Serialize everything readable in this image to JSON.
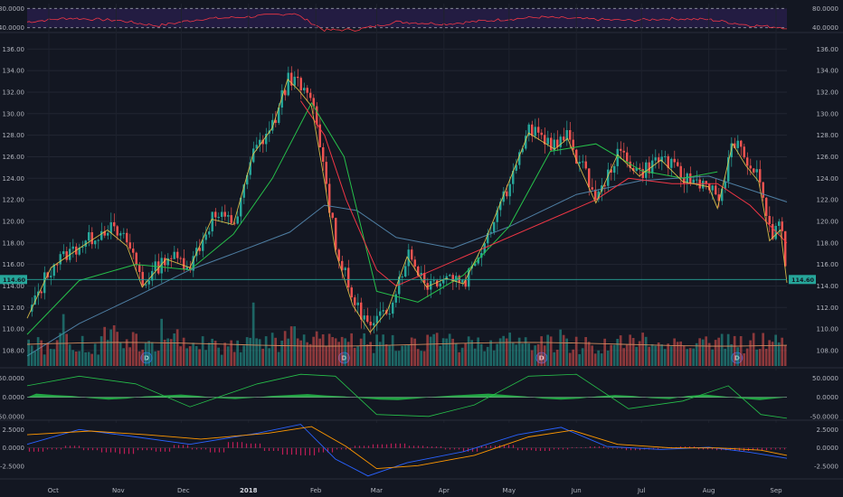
{
  "chart_data": [
    {
      "type": "line",
      "panel": "rsi",
      "y_ticks": [
        "80.0000",
        "40.0000"
      ],
      "ylim": [
        30,
        90
      ],
      "band": [
        40,
        80
      ],
      "series": [
        {
          "color": "#f23645",
          "x": [
            "2017-09-21",
            "2017-10-10",
            "2017-11-02",
            "2017-11-20",
            "2017-12-10",
            "2018-01-02",
            "2018-01-22",
            "2018-02-05",
            "2018-02-20",
            "2018-03-10",
            "2018-04-02",
            "2018-04-25",
            "2018-05-15",
            "2018-06-05",
            "2018-06-25",
            "2018-07-15",
            "2018-08-01",
            "2018-08-20",
            "2018-09-06"
          ],
          "y": [
            52,
            60,
            55,
            44,
            58,
            63,
            70,
            35,
            36,
            52,
            48,
            56,
            62,
            58,
            55,
            59,
            57,
            45,
            40
          ]
        }
      ]
    },
    {
      "type": "candlestick",
      "panel": "price",
      "y_ticks": [
        "136.00",
        "134.00",
        "132.00",
        "130.00",
        "128.00",
        "126.00",
        "124.00",
        "122.00",
        "120.00",
        "118.00",
        "116.00",
        "114.00",
        "112.00",
        "110.00",
        "108.00"
      ],
      "ylim": [
        106.4,
        137.2
      ],
      "x_ticks": [
        "Oct",
        "Nov",
        "Dec",
        "2018",
        "Feb",
        "Mar",
        "Apr",
        "May",
        "Jun",
        "Jul",
        "Aug",
        "Sep"
      ],
      "last_price_label": "114.60",
      "last_price": 114.6,
      "dividend_marker": "D",
      "dividend_dates": [
        "2017-11-15",
        "2018-02-14",
        "2018-05-16",
        "2018-08-14"
      ],
      "price_path": {
        "x": [
          "2017-09-21",
          "2017-10-02",
          "2017-10-15",
          "2017-10-28",
          "2017-11-06",
          "2017-11-13",
          "2017-11-24",
          "2017-12-05",
          "2017-12-15",
          "2017-12-25",
          "2018-01-03",
          "2018-01-12",
          "2018-01-19",
          "2018-01-24",
          "2018-01-30",
          "2018-02-02",
          "2018-02-05",
          "2018-02-10",
          "2018-02-18",
          "2018-02-26",
          "2018-03-06",
          "2018-03-15",
          "2018-03-24",
          "2018-04-02",
          "2018-04-10",
          "2018-04-20",
          "2018-05-01",
          "2018-05-10",
          "2018-05-22",
          "2018-05-28",
          "2018-06-01",
          "2018-06-10",
          "2018-06-20",
          "2018-06-30",
          "2018-07-10",
          "2018-07-20",
          "2018-08-01",
          "2018-08-05",
          "2018-08-12",
          "2018-08-18",
          "2018-08-24",
          "2018-08-29",
          "2018-09-03",
          "2018-09-06"
        ],
        "y": [
          111.3,
          116.0,
          117.8,
          119.5,
          118.0,
          114.2,
          116.8,
          116.0,
          120.5,
          120.0,
          126.5,
          129.0,
          133.5,
          132.5,
          131.0,
          127.5,
          124.0,
          117.5,
          112.5,
          110.0,
          112.0,
          117.0,
          114.2,
          115.0,
          114.5,
          118.5,
          124.0,
          128.5,
          127.0,
          128.0,
          126.0,
          122.0,
          126.5,
          124.5,
          126.0,
          124.0,
          123.5,
          121.5,
          127.5,
          125.5,
          124.0,
          118.5,
          119.5,
          114.6
        ]
      },
      "ma20": {
        "color": "#26c04a",
        "x": [
          "2017-09-21",
          "2017-10-15",
          "2017-11-10",
          "2017-12-05",
          "2017-12-25",
          "2018-01-12",
          "2018-01-30",
          "2018-02-14",
          "2018-03-01",
          "2018-03-20",
          "2018-04-10",
          "2018-05-01",
          "2018-05-20",
          "2018-06-10",
          "2018-07-01",
          "2018-07-20",
          "2018-08-05"
        ],
        "y": [
          109.5,
          114.5,
          116.0,
          115.5,
          118.8,
          124.0,
          131.0,
          126.0,
          113.5,
          112.5,
          115.0,
          119.5,
          126.5,
          127.2,
          124.7,
          124.0,
          124.6
        ]
      },
      "ma50": {
        "color": "#f23645",
        "x": [
          "2018-01-25",
          "2018-02-05",
          "2018-02-15",
          "2018-03-01",
          "2018-03-10",
          "2018-06-10",
          "2018-06-25",
          "2018-07-15",
          "2018-08-05",
          "2018-08-20",
          "2018-09-06"
        ],
        "y": [
          131.2,
          128.0,
          122.0,
          115.5,
          114.0,
          122.0,
          124.0,
          123.5,
          123.5,
          121.5,
          118.0
        ]
      },
      "ma100": {
        "color": "#4e7ea3",
        "x": [
          "2017-09-21",
          "2017-10-15",
          "2017-11-10",
          "2017-12-05",
          "2017-12-25",
          "2018-01-20",
          "2018-02-05",
          "2018-02-20",
          "2018-03-10",
          "2018-04-05",
          "2018-05-01",
          "2018-06-01",
          "2018-07-01",
          "2018-08-01",
          "2018-09-06"
        ],
        "y": [
          107.5,
          110.5,
          113.0,
          115.5,
          117.0,
          119.0,
          121.5,
          121.0,
          118.5,
          117.5,
          119.5,
          122.5,
          123.8,
          124.2,
          121.8
        ]
      }
    },
    {
      "type": "bar",
      "panel": "volume",
      "relative_volume": [
        0.45,
        0.62,
        0.5,
        0.38,
        1.0,
        0.55,
        0.4,
        0.48,
        0.72,
        0.6,
        0.42,
        0.5,
        0.68,
        0.55,
        0.9,
        0.65,
        0.58,
        0.7,
        0.62,
        0.5,
        0.45,
        0.6,
        0.55,
        0.52,
        0.48,
        0.6,
        0.62,
        0.55,
        0.58,
        0.5,
        0.48,
        0.45,
        0.5,
        0.6,
        0.55,
        0.52,
        0.62,
        0.58,
        0.55,
        0.5,
        0.6,
        0.7
      ]
    },
    {
      "type": "line",
      "panel": "oscillator",
      "y_ticks": [
        "50.0000",
        "0.0000",
        "-50.0000"
      ],
      "ylim": [
        -60,
        70
      ],
      "series": [
        {
          "color": "#26c04a",
          "x": [
            "2017-09-21",
            "2017-10-15",
            "2017-11-10",
            "2017-12-05",
            "2018-01-05",
            "2018-01-25",
            "2018-02-10",
            "2018-03-01",
            "2018-03-25",
            "2018-04-15",
            "2018-05-10",
            "2018-06-01",
            "2018-06-25",
            "2018-07-20",
            "2018-08-10",
            "2018-08-25",
            "2018-09-06"
          ],
          "y": [
            30,
            55,
            35,
            -25,
            35,
            60,
            55,
            -45,
            -50,
            -20,
            55,
            60,
            -30,
            -10,
            30,
            -45,
            -55
          ]
        }
      ],
      "histogram_color": "#26c04a",
      "histogram": [
        0.8,
        0.5,
        0.3,
        -0.2,
        -0.5,
        -0.3,
        0.2,
        0.4,
        0.6,
        0.3,
        -0.2,
        -0.4,
        -0.1,
        0.3,
        0.5,
        0.7,
        0.4,
        0.2,
        -0.2,
        -0.5,
        -0.6,
        -0.3,
        0.1,
        0.4,
        0.6,
        0.8,
        0.5,
        0.2,
        -0.3,
        -0.5,
        -0.3,
        0.2,
        0.5,
        0.3,
        -0.2,
        -0.4,
        0.3,
        0.6,
        0.2,
        -0.3,
        -0.6,
        -0.2
      ]
    },
    {
      "type": "line",
      "panel": "macd",
      "y_ticks": [
        "2.5000",
        "0.0000",
        "-2.5000"
      ],
      "ylim": [
        -4.2,
        3.4
      ],
      "series": [
        {
          "color": "#2962ff",
          "x": [
            "2017-09-21",
            "2017-10-15",
            "2017-11-10",
            "2017-12-05",
            "2018-01-05",
            "2018-01-25",
            "2018-02-10",
            "2018-02-25",
            "2018-03-15",
            "2018-04-10",
            "2018-05-05",
            "2018-05-25",
            "2018-06-15",
            "2018-07-10",
            "2018-08-01",
            "2018-08-20",
            "2018-09-06"
          ],
          "y": [
            0.5,
            2.5,
            1.5,
            0.5,
            2.0,
            3.2,
            -1.5,
            -3.8,
            -2.0,
            -0.5,
            1.8,
            2.8,
            0.2,
            -0.2,
            0.1,
            -0.6,
            -1.4
          ]
        },
        {
          "color": "#ff9800",
          "x": [
            "2017-09-21",
            "2017-10-20",
            "2017-11-15",
            "2017-12-10",
            "2018-01-10",
            "2018-01-30",
            "2018-02-15",
            "2018-03-01",
            "2018-03-20",
            "2018-04-15",
            "2018-05-10",
            "2018-05-30",
            "2018-06-20",
            "2018-07-15",
            "2018-08-05",
            "2018-08-25",
            "2018-09-06"
          ],
          "y": [
            1.8,
            2.3,
            1.8,
            1.2,
            2.0,
            2.9,
            0.2,
            -2.8,
            -2.4,
            -1.0,
            1.5,
            2.4,
            0.5,
            0.0,
            0.0,
            -0.3,
            -1.0
          ]
        }
      ],
      "histogram_color": "#e91e63",
      "histogram": [
        -0.5,
        -0.2,
        0.3,
        -0.3,
        -0.6,
        -0.8,
        -0.3,
        -0.5,
        0.4,
        -0.2,
        -0.6,
        0.8,
        0.6,
        -0.4,
        -0.9,
        -1.0,
        -0.6,
        -0.2,
        0.3,
        0.5,
        0.6,
        0.3,
        0.2,
        -0.2,
        -0.5,
        0.3,
        0.4,
        -0.3,
        -0.4,
        -0.2,
        0.1,
        0.2,
        -0.1,
        -0.3,
        -0.2,
        0.1,
        0.2,
        -0.2,
        -0.3,
        -0.4,
        -0.3,
        -0.2
      ]
    }
  ]
}
